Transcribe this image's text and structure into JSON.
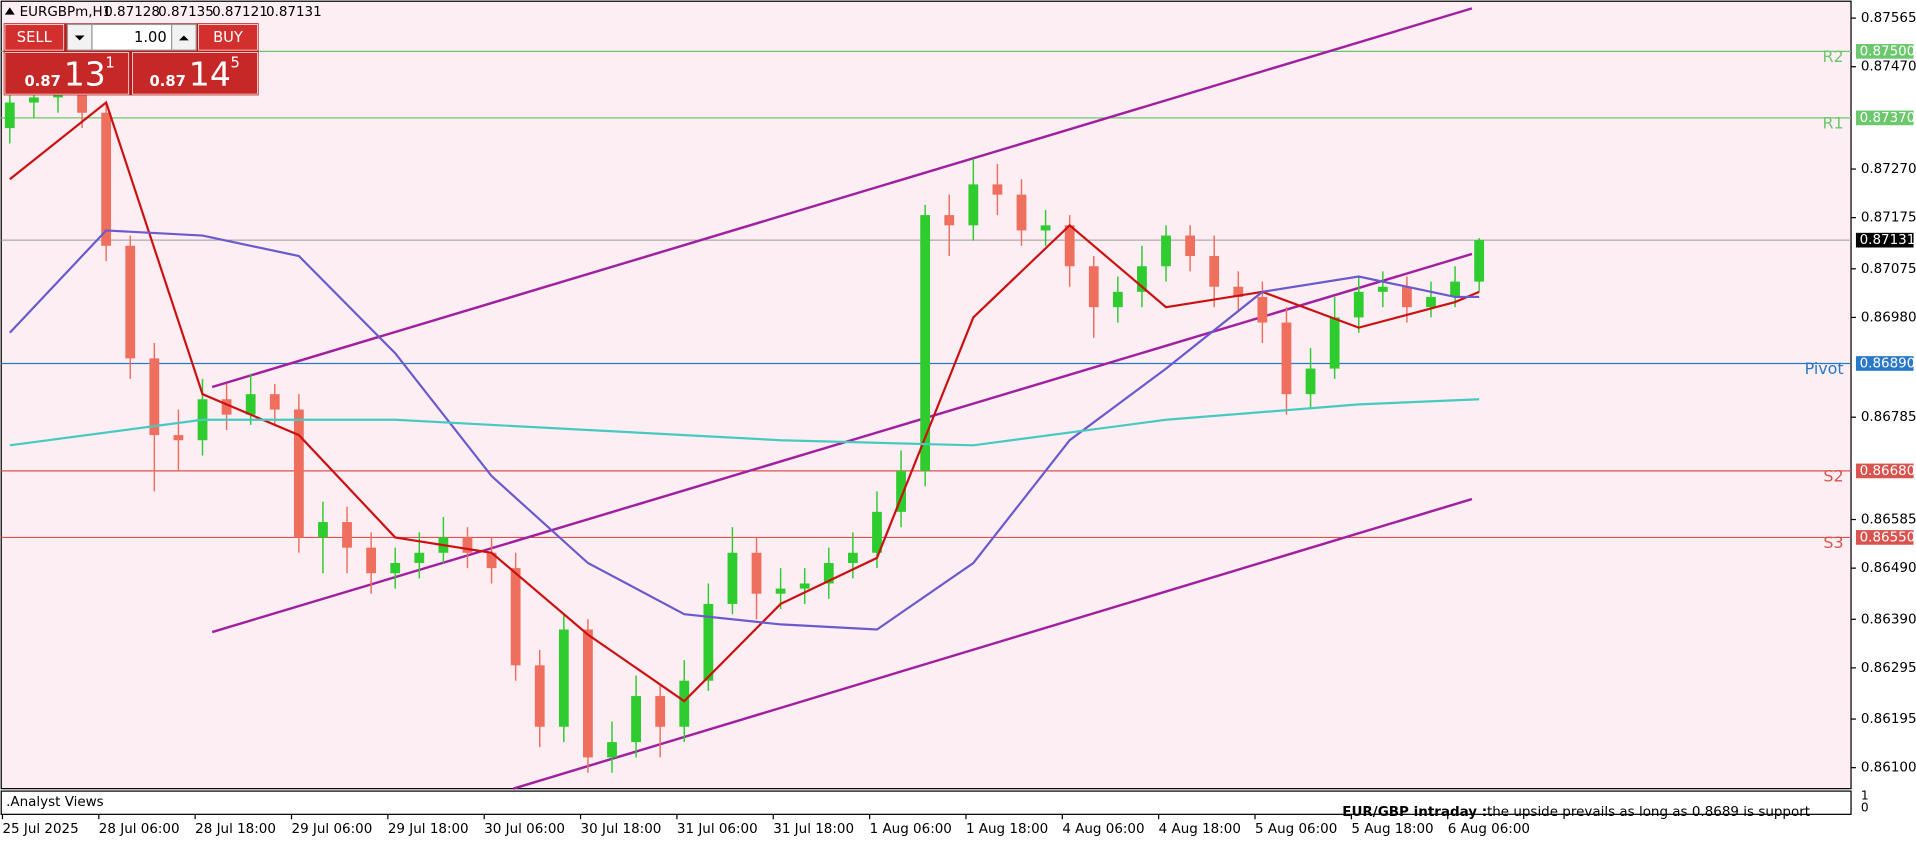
{
  "header": {
    "symbol": "EURGBPm,H1",
    "ohlc": [
      0.87128,
      0.87135,
      0.87121,
      0.87131
    ]
  },
  "trade_panel": {
    "sell": "SELL",
    "buy": "BUY",
    "volume": "1.00",
    "bid": {
      "big": "0.87",
      "pips": "13",
      "point": "1"
    },
    "ask": {
      "big": "0.87",
      "pips": "14",
      "point": "5"
    }
  },
  "indicator_window": {
    "name": ".Analyst Views",
    "ylabels": [
      "1",
      "0"
    ],
    "comment_title": "EUR/GBP intraday :",
    "comment": "the upside prevails as long as 0.8689 is support"
  },
  "chart_data": {
    "type": "candlestick",
    "background": "#fdeef4",
    "grid": false,
    "up_color": "#2ecc2e",
    "down_color": "#ef6f5f",
    "ylim": [
      0.86059,
      0.87598
    ],
    "yticks": [
      0.87565,
      {
        "value": 0.8747,
        "label": "0.87470"
      },
      {
        "value": 0.8727,
        "label": "0.87270"
      },
      0.87175,
      0.87075,
      {
        "value": 0.8698,
        "label": "0.86980"
      },
      0.86785,
      0.86585,
      {
        "value": 0.8649,
        "label": "0.86490"
      },
      {
        "value": 0.8639,
        "label": "0.86390"
      },
      0.86295,
      0.86195,
      {
        "value": 0.861,
        "label": "0.86100"
      }
    ],
    "categories": [
      "25 Jul 2025",
      null,
      null,
      null,
      "28 Jul 06:00",
      null,
      null,
      null,
      "28 Jul 18:00",
      null,
      null,
      null,
      "29 Jul 06:00",
      null,
      null,
      null,
      "29 Jul 18:00",
      null,
      null,
      null,
      "30 Jul 06:00",
      null,
      null,
      null,
      "30 Jul 18:00",
      null,
      null,
      null,
      "31 Jul 06:00",
      null,
      null,
      null,
      "31 Jul 18:00",
      null,
      null,
      null,
      "1 Aug 06:00",
      null,
      null,
      null,
      "1 Aug 18:00",
      null,
      null,
      null,
      "4 Aug 06:00",
      null,
      null,
      null,
      "4 Aug 18:00",
      null,
      null,
      null,
      "5 Aug 06:00",
      null,
      null,
      null,
      "5 Aug 18:00",
      null,
      null,
      null,
      "6 Aug 06:00",
      null
    ],
    "open": [
      0.8735,
      0.874,
      0.8741,
      0.8743,
      0.8738,
      0.8712,
      0.869,
      0.8675,
      0.8674,
      0.8682,
      0.8679,
      0.8683,
      0.868,
      0.8655,
      0.8658,
      0.8653,
      0.8648,
      0.865,
      0.8652,
      0.8655,
      0.8652,
      0.8649,
      0.863,
      0.8618,
      0.8637,
      0.8612,
      0.8615,
      0.8624,
      0.8618,
      0.8627,
      0.8642,
      0.8652,
      0.8644,
      0.8645,
      0.8646,
      0.865,
      0.8652,
      0.866,
      0.8668,
      0.8718,
      0.8716,
      0.8724,
      0.8722,
      0.8715,
      0.8716,
      0.8708,
      0.87,
      0.8703,
      0.8708,
      0.8714,
      0.871,
      0.8704,
      0.8702,
      0.8697,
      0.8683,
      0.8688,
      0.8698,
      0.8703,
      0.8704,
      0.87,
      0.8702,
      0.8705
    ],
    "high": [
      0.8744,
      0.8745,
      0.8748,
      0.8746,
      0.874,
      0.8714,
      0.8693,
      0.868,
      0.8686,
      0.8685,
      0.8687,
      0.8685,
      0.8683,
      0.8662,
      0.8661,
      0.8656,
      0.8653,
      0.8656,
      0.8659,
      0.8657,
      0.8655,
      0.8652,
      0.8633,
      0.864,
      0.8639,
      0.8619,
      0.8628,
      0.8626,
      0.8631,
      0.8646,
      0.8657,
      0.8655,
      0.8649,
      0.8649,
      0.8653,
      0.8656,
      0.8664,
      0.8672,
      0.872,
      0.8722,
      0.8729,
      0.8728,
      0.8725,
      0.8719,
      0.8718,
      0.871,
      0.8706,
      0.8712,
      0.8716,
      0.8716,
      0.8714,
      0.8707,
      0.8705,
      0.87,
      0.8692,
      0.8702,
      0.8706,
      0.8707,
      0.8706,
      0.8705,
      0.8708,
      0.87135
    ],
    "low": [
      0.8732,
      0.8737,
      0.8738,
      0.8735,
      0.8709,
      0.8686,
      0.8664,
      0.8668,
      0.8671,
      0.8676,
      0.8677,
      0.8677,
      0.8652,
      0.8648,
      0.8648,
      0.8644,
      0.8645,
      0.8647,
      0.865,
      0.8649,
      0.8646,
      0.8627,
      0.8614,
      0.8615,
      0.8609,
      0.8609,
      0.8612,
      0.8612,
      0.8615,
      0.8625,
      0.864,
      0.8639,
      0.8641,
      0.8642,
      0.8643,
      0.8647,
      0.8649,
      0.8657,
      0.8665,
      0.871,
      0.8713,
      0.8718,
      0.8712,
      0.8712,
      0.8704,
      0.8694,
      0.8697,
      0.87,
      0.8705,
      0.8707,
      0.87,
      0.8699,
      0.8693,
      0.8679,
      0.868,
      0.8686,
      0.8695,
      0.87,
      0.8697,
      0.8698,
      0.87,
      0.8703
    ],
    "close": [
      0.874,
      0.8741,
      0.8743,
      0.8738,
      0.8712,
      0.869,
      0.8675,
      0.8674,
      0.8682,
      0.8679,
      0.8683,
      0.868,
      0.8655,
      0.8658,
      0.8653,
      0.8648,
      0.865,
      0.8652,
      0.8655,
      0.8652,
      0.8649,
      0.863,
      0.8618,
      0.8637,
      0.8612,
      0.8615,
      0.8624,
      0.8618,
      0.8627,
      0.8642,
      0.8652,
      0.8644,
      0.8645,
      0.8646,
      0.865,
      0.8652,
      0.866,
      0.8668,
      0.8718,
      0.8716,
      0.8724,
      0.8722,
      0.8715,
      0.8716,
      0.8708,
      0.87,
      0.8703,
      0.8708,
      0.8714,
      0.871,
      0.8704,
      0.8702,
      0.8697,
      0.8683,
      0.8688,
      0.8698,
      0.8703,
      0.8704,
      0.87,
      0.8702,
      0.8705,
      0.87131
    ],
    "lines": [
      {
        "color": "#cc1111",
        "x": [
          0,
          4,
          8,
          12,
          16,
          20,
          24,
          28,
          32,
          36,
          40,
          44,
          48,
          52,
          56,
          60,
          61
        ],
        "values": [
          0.8725,
          0.874,
          0.8683,
          0.8675,
          0.8655,
          0.8652,
          0.8636,
          0.8623,
          0.8642,
          0.8651,
          0.8698,
          0.8716,
          0.87,
          0.8703,
          0.8696,
          0.8701,
          0.8703
        ]
      },
      {
        "color": "#6a5acd",
        "x": [
          0,
          4,
          8,
          12,
          16,
          20,
          24,
          28,
          32,
          36,
          40,
          44,
          48,
          52,
          56,
          60,
          61
        ],
        "values": [
          0.8695,
          0.8715,
          0.8714,
          0.871,
          0.8691,
          0.8667,
          0.865,
          0.864,
          0.8638,
          0.8637,
          0.865,
          0.8674,
          0.8688,
          0.8703,
          0.8706,
          0.8702,
          0.8702
        ]
      },
      {
        "color": "#48c9c0",
        "x": [
          0,
          8,
          16,
          24,
          32,
          40,
          48,
          56,
          61
        ],
        "values": [
          0.8673,
          0.8678,
          0.8678,
          0.8676,
          0.8674,
          0.8673,
          0.8678,
          0.8681,
          0.8682
        ]
      }
    ],
    "trendlines": [
      {
        "color": "#a020a0",
        "x": [
          8.4,
          60.7
        ],
        "values": [
          0.86844,
          0.87584
        ]
      },
      {
        "color": "#a020a0",
        "x": [
          8.4,
          60.7
        ],
        "values": [
          0.86365,
          0.87104
        ]
      },
      {
        "color": "#a020a0",
        "x": [
          20.9,
          60.7
        ],
        "values": [
          0.86059,
          0.86625
        ]
      }
    ],
    "levels": [
      {
        "name": "R2",
        "value": 0.875,
        "label": "0.87500",
        "color": "#6cc86c"
      },
      {
        "name": "R1",
        "value": 0.8737,
        "label": "0.87370",
        "color": "#6cc86c"
      },
      {
        "name": "Pivot",
        "value": 0.8689,
        "label": "0.86890",
        "color": "#2a78c8"
      },
      {
        "name": "S2",
        "value": 0.8668,
        "label": "0.86680",
        "color": "#d9534f"
      },
      {
        "name": "S3",
        "value": 0.8655,
        "label": "0.86550",
        "color": "#d9534f"
      }
    ],
    "current_price": 0.87131
  }
}
